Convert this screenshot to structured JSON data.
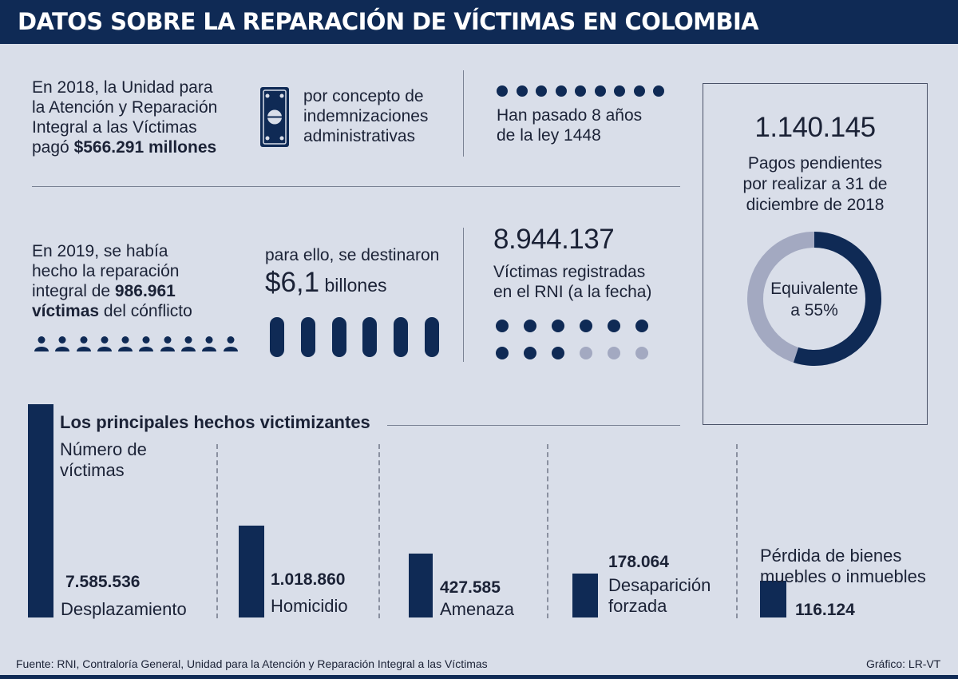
{
  "header": {
    "title": "DATOS SOBRE LA REPARACIÓN DE VÍCTIMAS EN COLOMBIA"
  },
  "section1": {
    "text_lines": [
      "En 2018, la Unidad para",
      "la Atención y Reparación",
      "Integral a las Víctimas"
    ],
    "paid_prefix": "pagó ",
    "paid_amount": "$566.291 millones",
    "concept_lines": [
      "por concepto de",
      "indemnizaciones",
      "administrativas"
    ],
    "icon": "money-bill-icon"
  },
  "section2": {
    "dots_count": 9,
    "text_lines": [
      "Han pasado 8 años",
      "de la ley 1448"
    ]
  },
  "section3": {
    "line1": "En 2019, se había",
    "line2": "hecho la reparación",
    "line3_prefix": "integral de ",
    "repaired_count": "986.961",
    "line4_bold": "víctimas",
    "line4_rest": " del cónflicto",
    "people_count": 10,
    "icon": "person-icon"
  },
  "section4": {
    "intro": "para ello, se destinaron",
    "amount": "$6,1",
    "unit": " billones",
    "pills_count": 6
  },
  "section5": {
    "total": "8.944.137",
    "text_lines": [
      "Víctimas registradas",
      "en el RNI (a la fecha)"
    ],
    "dots_filled": 9,
    "dots_light": 3
  },
  "pending": {
    "number": "1.140.145",
    "text_lines": [
      "Pagos pendientes",
      "por realizar a 31 de",
      "diciembre de 2018"
    ],
    "donut_label_lines": [
      "Equivalente",
      "a 55%"
    ],
    "percent": 55,
    "colors": {
      "filled": "#0f2a55",
      "remaining": "#a3a9c1"
    }
  },
  "chart_data": {
    "type": "bar",
    "title": "Los principales hechos victimizantes",
    "ylabel": "Número de víctimas",
    "categories": [
      "Desplazamiento",
      "Homicidio",
      "Amenaza",
      "Desaparición forzada",
      "Pérdida de bienes muebles o inmuebles"
    ],
    "values": [
      7585536,
      1018860,
      427585,
      178064,
      116124
    ],
    "value_labels": [
      "7.585.536",
      "1.018.860",
      "427.585",
      "178.064",
      "116.124"
    ],
    "category_label_lines": [
      [
        "Desplazamiento"
      ],
      [
        "Homicidio"
      ],
      [
        "Amenaza"
      ],
      [
        "Desaparición",
        "forzada"
      ],
      [
        "Pérdida de bienes",
        "muebles o inmuebles"
      ]
    ],
    "bar_color": "#0f2a55"
  },
  "footer": {
    "source": "Fuente: RNI, Contraloría General, Unidad para la Atención y Reparación Integral a las Víctimas",
    "credit": "Gráfico: LR-VT"
  }
}
